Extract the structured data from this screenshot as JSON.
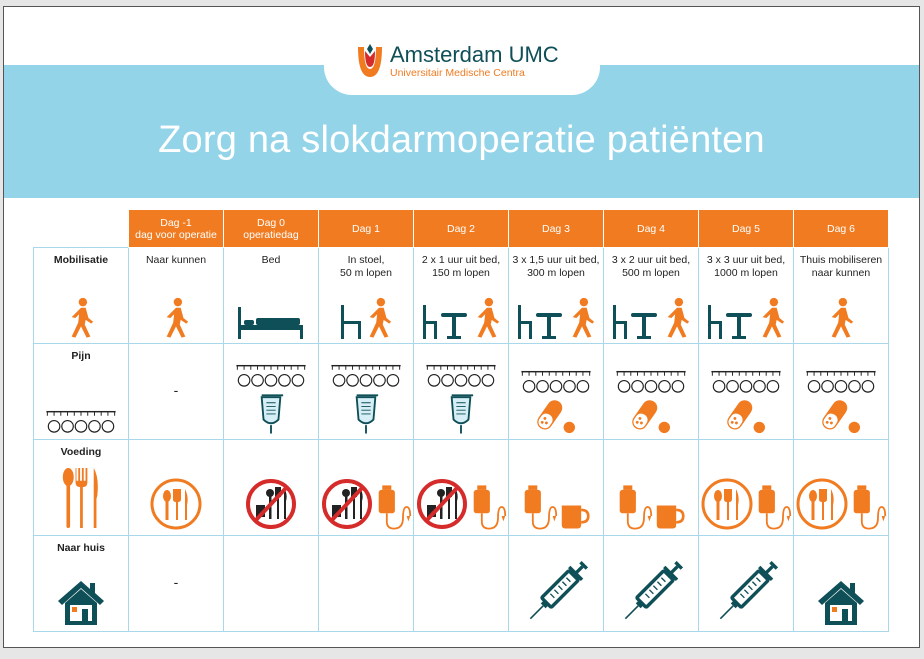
{
  "logo": {
    "brand": "Amsterdam UMC",
    "subtitle": "Universitair Medische Centra"
  },
  "title": "Zorg na slokdarmoperatie patiënten",
  "colors": {
    "orange": "#f07b21",
    "teal": "#0f4f57",
    "band": "#93d4e8",
    "grid": "#a9d8ea",
    "red": "#d52b2b"
  },
  "columns": [
    {
      "label": "Dag -1",
      "sub": "dag voor operatie"
    },
    {
      "label": "Dag 0",
      "sub": "operatiedag"
    },
    {
      "label": "Dag 1",
      "sub": ""
    },
    {
      "label": "Dag 2",
      "sub": ""
    },
    {
      "label": "Dag 3",
      "sub": ""
    },
    {
      "label": "Dag 4",
      "sub": ""
    },
    {
      "label": "Dag 5",
      "sub": ""
    },
    {
      "label": "Dag 6",
      "sub": ""
    }
  ],
  "rows": [
    {
      "label": "Mobilisatie",
      "label_icons": [
        "walker-icon"
      ],
      "cells": [
        {
          "text": "Naar kunnen",
          "icons": [
            "walker-icon"
          ]
        },
        {
          "text": "Bed",
          "icons": [
            "bed-icon"
          ]
        },
        {
          "text": "In stoel,\n50 m lopen",
          "icons": [
            "chair-icon",
            "walker-icon"
          ]
        },
        {
          "text": "2 x 1 uur uit bed,\n150 m lopen",
          "icons": [
            "chair-table-icon",
            "walker-icon"
          ]
        },
        {
          "text": "3 x 1,5 uur uit bed,\n300 m lopen",
          "icons": [
            "chair-table-icon",
            "walker-icon"
          ]
        },
        {
          "text": "3 x 2 uur uit bed,\n500 m lopen",
          "icons": [
            "chair-table-icon",
            "walker-icon"
          ]
        },
        {
          "text": "3 x 3 uur uit bed,\n1000 m lopen",
          "icons": [
            "chair-table-icon",
            "walker-icon"
          ]
        },
        {
          "text": "Thuis mobiliseren\nnaar kunnen",
          "icons": [
            "walker-icon"
          ]
        }
      ]
    },
    {
      "label": "Pijn",
      "label_icons": [
        "pain-scale-icon"
      ],
      "cells": [
        {
          "text": "-",
          "icons": []
        },
        {
          "text": "",
          "icons": [
            "pain-scale-icon",
            "iv-bag-icon"
          ]
        },
        {
          "text": "",
          "icons": [
            "pain-scale-icon",
            "iv-bag-icon"
          ]
        },
        {
          "text": "",
          "icons": [
            "pain-scale-icon",
            "iv-bag-icon"
          ]
        },
        {
          "text": "",
          "icons": [
            "pain-scale-icon",
            "pills-icon"
          ]
        },
        {
          "text": "",
          "icons": [
            "pain-scale-icon",
            "pills-icon"
          ]
        },
        {
          "text": "",
          "icons": [
            "pain-scale-icon",
            "pills-icon"
          ]
        },
        {
          "text": "",
          "icons": [
            "pain-scale-icon",
            "pills-icon"
          ]
        }
      ]
    },
    {
      "label": "Voeding",
      "label_icons": [
        "cutlery-icon"
      ],
      "cells": [
        {
          "text": "",
          "icons": [
            "plate-icon"
          ]
        },
        {
          "text": "",
          "icons": [
            "no-food-icon"
          ]
        },
        {
          "text": "",
          "icons": [
            "no-food-icon",
            "tube-feeding-icon"
          ]
        },
        {
          "text": "",
          "icons": [
            "no-food-icon",
            "tube-feeding-icon"
          ]
        },
        {
          "text": "",
          "icons": [
            "tube-feeding-icon",
            "cup-icon"
          ]
        },
        {
          "text": "",
          "icons": [
            "tube-feeding-icon",
            "cup-icon"
          ]
        },
        {
          "text": "",
          "icons": [
            "plate-icon",
            "tube-feeding-icon"
          ]
        },
        {
          "text": "",
          "icons": [
            "plate-icon",
            "tube-feeding-icon"
          ]
        }
      ]
    },
    {
      "label": "Naar huis",
      "label_icons": [
        "house-icon"
      ],
      "cells": [
        {
          "text": "-",
          "icons": []
        },
        {
          "text": "",
          "icons": []
        },
        {
          "text": "",
          "icons": []
        },
        {
          "text": "",
          "icons": []
        },
        {
          "text": "",
          "icons": [
            "syringe-icon"
          ]
        },
        {
          "text": "",
          "icons": [
            "syringe-icon"
          ]
        },
        {
          "text": "",
          "icons": [
            "syringe-icon"
          ]
        },
        {
          "text": "",
          "icons": [
            "house-icon"
          ]
        }
      ]
    }
  ]
}
